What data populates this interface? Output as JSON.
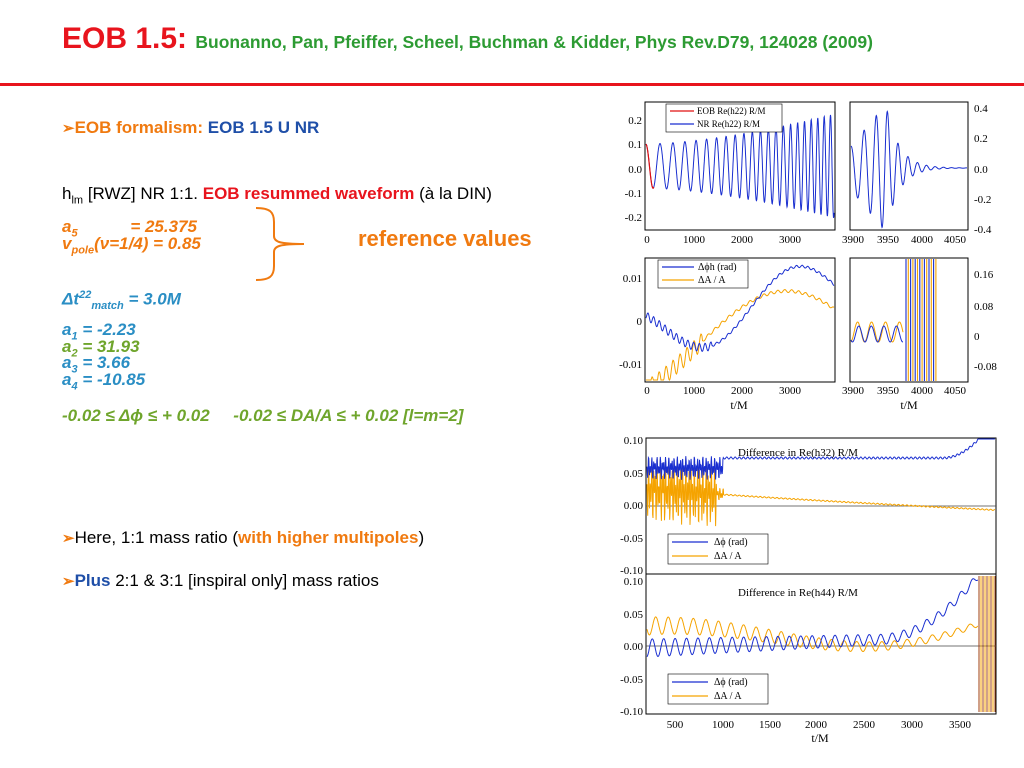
{
  "header": {
    "title": "EOB 1.5:",
    "reference": "Buonanno, Pan, Pfeiffer, Scheel, Buchman & Kidder, Phys Rev.D79, 124028 (2009)"
  },
  "left": {
    "formalism": {
      "label": "EOB formalism:",
      "value": "EOB 1.5 U NR"
    },
    "waveform_line": {
      "h": "h",
      "h_sub": "lm",
      "rwz": "[RWZ] NR 1:1.",
      "eob": "EOB resummed waveform",
      "tail": "(à la DIN)"
    },
    "a5": {
      "sym": "a",
      "sub": "5",
      "val": "=  25.375"
    },
    "vpole": {
      "sym": "v",
      "sub": "pole",
      "val": "(ν=1/4) = 0.85"
    },
    "brace_label": "reference values",
    "dt": {
      "sym": "Δt",
      "sup": "22",
      "sub": "match",
      "val": "= 3.0M"
    },
    "a1": {
      "sym": "a",
      "sub": "1",
      "val": "= -2.23"
    },
    "a2": {
      "sym": "a",
      "sub": "2",
      "val": "= 31.93"
    },
    "a3": {
      "sym": "a",
      "sub": "3",
      "val": "= 3.66"
    },
    "a4": {
      "sym": "a",
      "sub": "4",
      "val": "= -10.85"
    },
    "tolerance": "-0.02 ≤ Δϕ ≤ + 0.02     -0.02 ≤ DA/A ≤ + 0.02 [l=m=2]",
    "bullet1": {
      "pre": "Here, 1:1 mass ratio (",
      "hl": "with higher multipoles",
      "post": ")"
    },
    "bullet2": {
      "hl": "Plus",
      "rest": "2:1 & 3:1 [inspiral only]  mass ratios"
    }
  },
  "plots": {
    "wave_left": {
      "yticks": [
        "0.2",
        "0.1",
        "0.0",
        "-0.1",
        "-0.2"
      ],
      "xticks": [
        "0",
        "1000",
        "2000",
        "3000"
      ],
      "legend": [
        "EOB Re(h22) R/M",
        "NR Re(h22) R/M"
      ]
    },
    "wave_right": {
      "yticks": [
        "0.4",
        "0.2",
        "0.0",
        "-0.2",
        "-0.4"
      ],
      "xticks": [
        "3900",
        "3950",
        "4000",
        "4050"
      ]
    },
    "diff_left": {
      "yticks": [
        "0.01",
        "0",
        "-0.01"
      ],
      "xticks": [
        "0",
        "1000",
        "2000",
        "3000"
      ],
      "xlabel": "t/M",
      "legend": [
        "Δϕh (rad)",
        "ΔA / A"
      ]
    },
    "diff_right": {
      "yticks": [
        "0.16",
        "0.08",
        "0",
        "-0.08"
      ],
      "xticks": [
        "3900",
        "3950",
        "4000",
        "4050"
      ],
      "xlabel": "t/M"
    },
    "h32": {
      "title": "Difference in Re(h32) R/M",
      "yticks": [
        "0.10",
        "0.05",
        "0.00",
        "-0.05",
        "-0.10"
      ],
      "legend": [
        "Δϕ (rad)",
        "ΔA / A"
      ]
    },
    "h44": {
      "title": "Difference in Re(h44) R/M",
      "yticks": [
        "0.10",
        "0.05",
        "0.00",
        "-0.05",
        "-0.10"
      ],
      "legend": [
        "Δϕ (rad)",
        "ΔA / A"
      ],
      "xticks": [
        "500",
        "1000",
        "1500",
        "2000",
        "2500",
        "3000",
        "3500"
      ],
      "xlabel": "t/M"
    },
    "colors": {
      "blue": "#1a2fd0",
      "orange": "#f5a300",
      "red": "#e01010"
    }
  }
}
